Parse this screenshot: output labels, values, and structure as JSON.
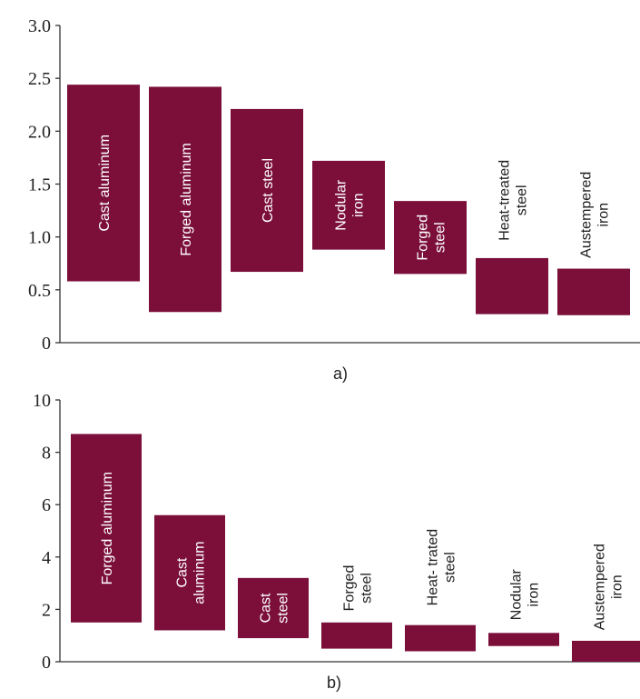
{
  "bar_color": "#7b0f3a",
  "chart_data": [
    {
      "type": "bar",
      "subtype": "floating-range",
      "panel_label": "a)",
      "ylim": [
        0,
        3.0
      ],
      "yticks": [
        "0",
        "0.5",
        "1.0",
        "1.5",
        "2.0",
        "2.5",
        "3.0"
      ],
      "grid": false,
      "bars": [
        {
          "label": "Cast aluminum",
          "lines": [
            "Cast aluminum"
          ],
          "low": 0.58,
          "high": 2.44,
          "label_pos": "inside"
        },
        {
          "label": "Forged aluminum",
          "lines": [
            "Forged aluminum"
          ],
          "low": 0.29,
          "high": 2.42,
          "label_pos": "inside"
        },
        {
          "label": "Cast steel",
          "lines": [
            "Cast steel"
          ],
          "low": 0.67,
          "high": 2.21,
          "label_pos": "inside"
        },
        {
          "label": "Nodular iron",
          "lines": [
            "Nodular",
            "iron"
          ],
          "low": 0.88,
          "high": 1.72,
          "label_pos": "inside"
        },
        {
          "label": "Forged steel",
          "lines": [
            "Forged",
            "steel"
          ],
          "low": 0.65,
          "high": 1.34,
          "label_pos": "inside"
        },
        {
          "label": "Heat-treated steel",
          "lines": [
            "Heat-treated",
            "steel"
          ],
          "low": 0.27,
          "high": 0.8,
          "label_pos": "above"
        },
        {
          "label": "Austempered iron",
          "lines": [
            "Austempered",
            "iron"
          ],
          "low": 0.26,
          "high": 0.7,
          "label_pos": "above"
        }
      ]
    },
    {
      "type": "bar",
      "subtype": "floating-range",
      "panel_label": "b)",
      "ylim": [
        0,
        10
      ],
      "yticks": [
        "0",
        "2",
        "4",
        "6",
        "8",
        "10"
      ],
      "grid": false,
      "bars": [
        {
          "label": "Forged aluminum",
          "lines": [
            "Forged aluminum"
          ],
          "low": 1.5,
          "high": 8.7,
          "label_pos": "inside"
        },
        {
          "label": "Cast aluminum",
          "lines": [
            "Cast",
            "aluminum"
          ],
          "low": 1.2,
          "high": 5.6,
          "label_pos": "inside"
        },
        {
          "label": "Cast steel",
          "lines": [
            "Cast",
            "steel"
          ],
          "low": 0.9,
          "high": 3.2,
          "label_pos": "inside"
        },
        {
          "label": "Forged steel",
          "lines": [
            "Forged",
            "steel"
          ],
          "low": 0.5,
          "high": 1.5,
          "label_pos": "above"
        },
        {
          "label": "Heat- trated steel",
          "lines": [
            "Heat- trated",
            "steel"
          ],
          "low": 0.4,
          "high": 1.4,
          "label_pos": "above"
        },
        {
          "label": "Nodular iron",
          "lines": [
            "Nodular",
            "iron"
          ],
          "low": 0.6,
          "high": 1.1,
          "label_pos": "above"
        },
        {
          "label": "Austempered iron",
          "lines": [
            "Austempered",
            "iron"
          ],
          "low": 0.0,
          "high": 0.8,
          "label_pos": "above"
        }
      ]
    }
  ]
}
